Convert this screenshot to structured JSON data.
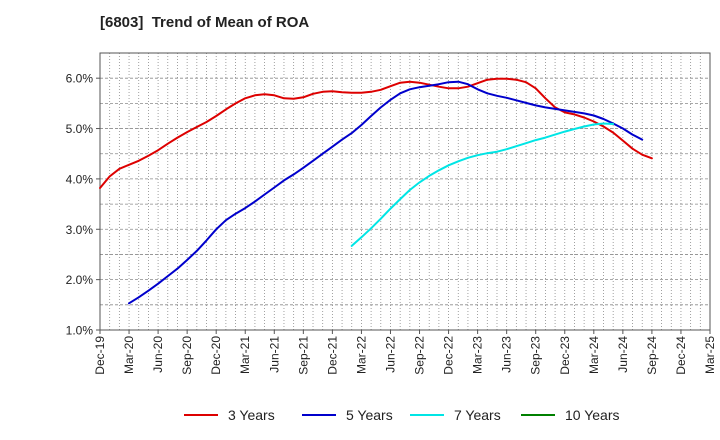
{
  "title": "[6803]  Trend of Mean of ROA",
  "chart_data": {
    "type": "line",
    "title": "[6803]  Trend of Mean of ROA",
    "xlabel": "",
    "ylabel": "",
    "x_ticks": [
      "Dec-19",
      "Mar-20",
      "Jun-20",
      "Sep-20",
      "Dec-20",
      "Mar-21",
      "Jun-21",
      "Sep-21",
      "Dec-21",
      "Mar-22",
      "Jun-22",
      "Sep-22",
      "Dec-22",
      "Mar-23",
      "Jun-23",
      "Sep-23",
      "Dec-23",
      "Mar-24",
      "Jun-24",
      "Sep-24",
      "Dec-24",
      "Mar-25"
    ],
    "y_ticks": [
      "1.0%",
      "2.0%",
      "3.0%",
      "4.0%",
      "5.0%",
      "6.0%"
    ],
    "ylim": [
      1.0,
      6.5
    ],
    "grid": true,
    "legend_position": "bottom",
    "series": [
      {
        "name": "3 Years",
        "color": "#dd0000",
        "values": [
          3.82,
          4.05,
          4.2,
          4.28,
          4.36,
          4.46,
          4.57,
          4.7,
          4.82,
          4.93,
          5.03,
          5.13,
          5.25,
          5.38,
          5.5,
          5.6,
          5.66,
          5.68,
          5.66,
          5.6,
          5.59,
          5.62,
          5.69,
          5.73,
          5.74,
          5.72,
          5.71,
          5.71,
          5.73,
          5.77,
          5.84,
          5.91,
          5.93,
          5.91,
          5.87,
          5.83,
          5.8,
          5.8,
          5.83,
          5.9,
          5.97,
          5.99,
          5.99,
          5.97,
          5.92,
          5.8,
          5.6,
          5.42,
          5.32,
          5.28,
          5.22,
          5.14,
          5.04,
          4.92,
          4.76,
          4.6,
          4.48,
          4.41
        ]
      },
      {
        "name": "5 Years",
        "color": "#0000cc",
        "values": [
          null,
          null,
          null,
          1.53,
          1.65,
          1.78,
          1.92,
          2.07,
          2.22,
          2.39,
          2.57,
          2.78,
          3.0,
          3.18,
          3.31,
          3.42,
          3.55,
          3.69,
          3.83,
          3.97,
          4.09,
          4.22,
          4.36,
          4.5,
          4.64,
          4.78,
          4.91,
          5.07,
          5.25,
          5.42,
          5.57,
          5.7,
          5.78,
          5.82,
          5.85,
          5.88,
          5.92,
          5.93,
          5.88,
          5.78,
          5.7,
          5.65,
          5.61,
          5.56,
          5.51,
          5.46,
          5.42,
          5.39,
          5.36,
          5.33,
          5.3,
          5.26,
          5.19,
          5.1,
          5.0,
          4.88,
          4.78,
          null
        ]
      },
      {
        "name": "7 Years",
        "color": "#00e5e5",
        "values": [
          null,
          null,
          null,
          null,
          null,
          null,
          null,
          null,
          null,
          null,
          null,
          null,
          null,
          null,
          null,
          null,
          null,
          null,
          null,
          null,
          null,
          null,
          null,
          null,
          null,
          null,
          2.67,
          2.84,
          3.02,
          3.21,
          3.41,
          3.6,
          3.78,
          3.93,
          4.06,
          4.17,
          4.27,
          4.35,
          4.42,
          4.47,
          4.51,
          4.54,
          4.59,
          4.65,
          4.71,
          4.77,
          4.82,
          4.88,
          4.94,
          4.99,
          5.04,
          5.08,
          5.1,
          5.09,
          null,
          null,
          null,
          null
        ]
      },
      {
        "name": "10 Years",
        "color": "#008000",
        "values": []
      }
    ]
  }
}
